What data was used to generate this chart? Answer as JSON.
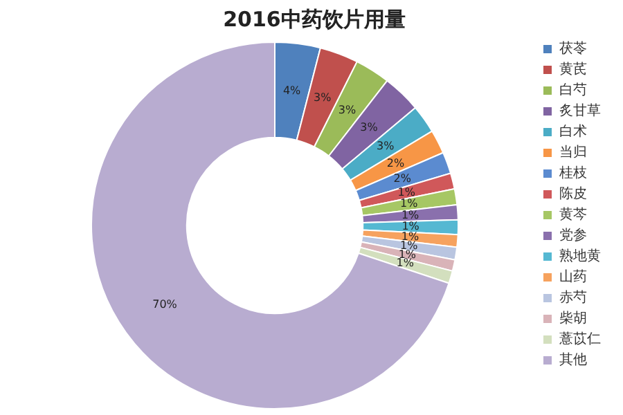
{
  "chart_data": {
    "type": "donut",
    "title": "2016中药饮片用量",
    "categories": [
      "茯苓",
      "黄芪",
      "白芍",
      "炙甘草",
      "白术",
      "当归",
      "桂枝",
      "陈皮",
      "黄芩",
      "党参",
      "熟地黄",
      "山药",
      "赤芍",
      "柴胡",
      "薏苡仁",
      "其他"
    ],
    "values": [
      4.0,
      3.4,
      3.1,
      3.4,
      2.5,
      2.1,
      1.9,
      1.4,
      1.4,
      1.3,
      1.3,
      1.1,
      1.1,
      1.0,
      1.1,
      69.9
    ],
    "colors": [
      "#4f81bd",
      "#c0504d",
      "#9bbb59",
      "#8064a2",
      "#4bacc6",
      "#f79646",
      "#5b8bd0",
      "#d0585a",
      "#a6c764",
      "#8a70ad",
      "#55b8d2",
      "#f6a25e",
      "#b9c5e0",
      "#d9b3b8",
      "#d3dfbe",
      "#b8acd0"
    ],
    "value_labels": [
      "4%",
      "3%",
      "3%",
      "3%",
      "3%",
      "2%",
      "2%",
      "1%",
      "1%",
      "1%",
      "1%",
      "1%",
      "1%",
      "1%",
      "1%",
      "70%"
    ],
    "legend": "right"
  }
}
